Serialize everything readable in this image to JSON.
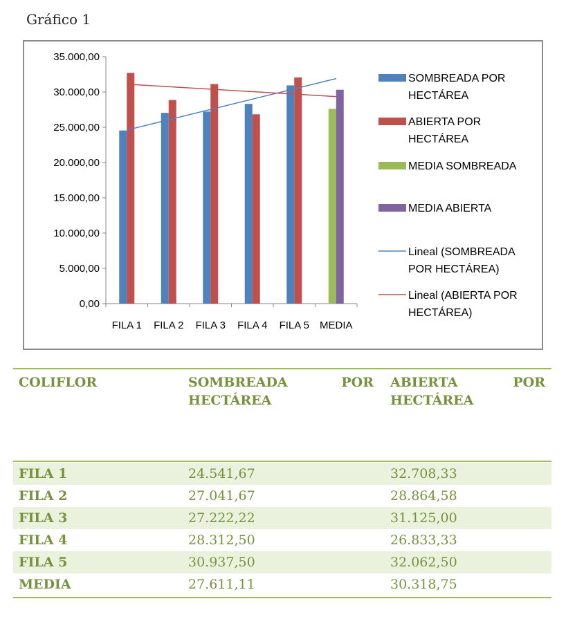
{
  "caption": "Gráfico 1",
  "chart_data": {
    "type": "bar",
    "categories": [
      "FILA 1",
      "FILA 2",
      "FILA 3",
      "FILA 4",
      "FILA 5",
      "MEDIA"
    ],
    "series": [
      {
        "name": "SOMBREADA POR HECTÁREA",
        "color": "#4f81bd",
        "values": [
          24541.67,
          27041.67,
          27222.22,
          28312.5,
          30937.5,
          null
        ]
      },
      {
        "name": "ABIERTA POR HECTÁREA",
        "color": "#c0504d",
        "values": [
          32708.33,
          28864.58,
          31125.0,
          26833.33,
          32062.5,
          null
        ]
      },
      {
        "name": "MEDIA SOMBREADA",
        "color": "#9bbb59",
        "values": [
          null,
          null,
          null,
          null,
          null,
          27611.11
        ]
      },
      {
        "name": "MEDIA ABIERTA",
        "color": "#8064a2",
        "values": [
          null,
          null,
          null,
          null,
          null,
          30318.75
        ]
      }
    ],
    "trendlines": [
      {
        "name": "Lineal (SOMBREADA POR HECTÁREA)",
        "color": "#4f81bd",
        "start": 24600,
        "end": 31900
      },
      {
        "name": "Lineal (ABIERTA POR HECTÁREA)",
        "color": "#c0504d",
        "start": 31100,
        "end": 29350
      }
    ],
    "legend": [
      {
        "lines": [
          "SOMBREADA POR",
          "HECTÁREA"
        ],
        "kind": "box",
        "color": "#4f81bd"
      },
      {
        "lines": [
          "ABIERTA POR",
          "HECTÁREA"
        ],
        "kind": "box",
        "color": "#c0504d"
      },
      {
        "lines": [
          "MEDIA SOMBREADA"
        ],
        "kind": "box",
        "color": "#9bbb59"
      },
      {
        "lines": [
          "MEDIA ABIERTA"
        ],
        "kind": "box",
        "color": "#8064a2"
      },
      {
        "lines": [
          "Lineal (SOMBREADA",
          "POR HECTÁREA)"
        ],
        "kind": "line",
        "color": "#4f81bd"
      },
      {
        "lines": [
          "Lineal (ABIERTA POR",
          "HECTÁREA)"
        ],
        "kind": "line",
        "color": "#c0504d"
      }
    ],
    "yticks": [
      "0,00",
      "5.000,00",
      "10.000,00",
      "15.000,00",
      "20.000,00",
      "25.000,00",
      "30.000,00",
      "35.000,00"
    ],
    "ylim": [
      0,
      35000
    ],
    "legend_position": "right",
    "grid": false
  },
  "table": {
    "headers": {
      "col1": "COLIFLOR",
      "col2_line1_a": "SOMBREADA",
      "col2_line1_b": "POR",
      "col2_line2": "HECTÁREA",
      "col3_line1_a": "ABIERTA",
      "col3_line1_b": "POR",
      "col3_line2": "HECTÁREA"
    },
    "rows": [
      {
        "label": "FILA 1",
        "sombreada": "24.541,67",
        "abierta": "32.708,33"
      },
      {
        "label": "FILA 2",
        "sombreada": "27.041,67",
        "abierta": "28.864,58"
      },
      {
        "label": "FILA 3",
        "sombreada": "27.222,22",
        "abierta": "31.125,00"
      },
      {
        "label": "FILA 4",
        "sombreada": "28.312,50",
        "abierta": "26.833,33"
      },
      {
        "label": "FILA 5",
        "sombreada": "30.937,50",
        "abierta": "32.062,50"
      },
      {
        "label": "MEDIA",
        "sombreada": "27.611,11",
        "abierta": "30.318,75"
      }
    ]
  }
}
